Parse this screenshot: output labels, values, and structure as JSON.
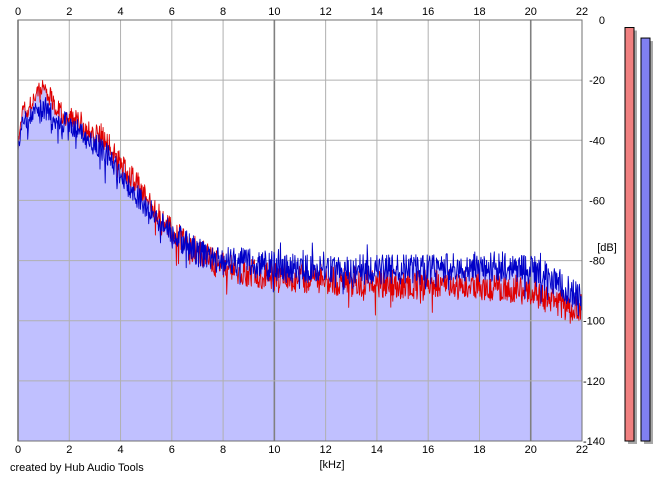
{
  "chart_data": {
    "type": "area",
    "xlabel": "[kHz]",
    "ylabel": "[dB]",
    "xlim": [
      0,
      22
    ],
    "ylim": [
      -140,
      0
    ],
    "x_ticks": [
      "0",
      "2",
      "4",
      "6",
      "8",
      "10",
      "12",
      "14",
      "16",
      "18",
      "20",
      "22"
    ],
    "y_ticks": [
      "0",
      "-20",
      "-40",
      "-60",
      "-80",
      "-100",
      "-120",
      "-140"
    ],
    "grid": true,
    "series": [
      {
        "color": "#e00000",
        "x": [
          0.0,
          0.2,
          0.4,
          0.6,
          0.8,
          1.0,
          1.2,
          1.4,
          1.6,
          1.8,
          2.0,
          2.4,
          2.8,
          3.2,
          3.6,
          4.0,
          4.4,
          4.8,
          5.2,
          5.6,
          6.0,
          6.5,
          7.0,
          7.5,
          8.0,
          9.0,
          10.0,
          11.0,
          12.0,
          13.0,
          14.0,
          15.0,
          16.0,
          17.0,
          18.0,
          19.0,
          20.0,
          20.5,
          21.0,
          21.5,
          22.0
        ],
        "y": [
          -42,
          -28,
          -30,
          -26,
          -24,
          -22,
          -25,
          -27,
          -30,
          -31,
          -33,
          -34,
          -37,
          -38,
          -42,
          -48,
          -52,
          -56,
          -61,
          -66,
          -70,
          -74,
          -77,
          -80,
          -82,
          -84,
          -85,
          -86,
          -86,
          -87,
          -87,
          -88,
          -88,
          -88,
          -88,
          -89,
          -90,
          -92,
          -94,
          -96,
          -96
        ]
      },
      {
        "color": "#0000c8",
        "x": [
          0.0,
          0.2,
          0.4,
          0.6,
          0.8,
          1.0,
          1.2,
          1.4,
          1.6,
          1.8,
          2.0,
          2.4,
          2.8,
          3.2,
          3.6,
          4.0,
          4.4,
          4.8,
          5.2,
          5.6,
          6.0,
          6.5,
          7.0,
          7.5,
          8.0,
          9.0,
          10.0,
          11.0,
          12.0,
          13.0,
          14.0,
          15.0,
          16.0,
          17.0,
          18.0,
          19.0,
          20.0,
          20.5,
          21.0,
          21.5,
          22.0
        ],
        "y": [
          -44,
          -32,
          -34,
          -31,
          -30,
          -29,
          -30,
          -32,
          -34,
          -34,
          -35,
          -37,
          -40,
          -42,
          -46,
          -52,
          -56,
          -60,
          -64,
          -68,
          -71,
          -74,
          -77,
          -79,
          -80,
          -81,
          -82,
          -83,
          -82,
          -83,
          -83,
          -83,
          -83,
          -82,
          -82,
          -82,
          -83,
          -85,
          -87,
          -90,
          -92
        ]
      }
    ],
    "level_meters": [
      {
        "color": "#f08080",
        "level_db": -2.5
      },
      {
        "color": "#8080f0",
        "level_db": -6
      }
    ]
  },
  "footer": {
    "credit": "created by Hub Audio Tools"
  }
}
